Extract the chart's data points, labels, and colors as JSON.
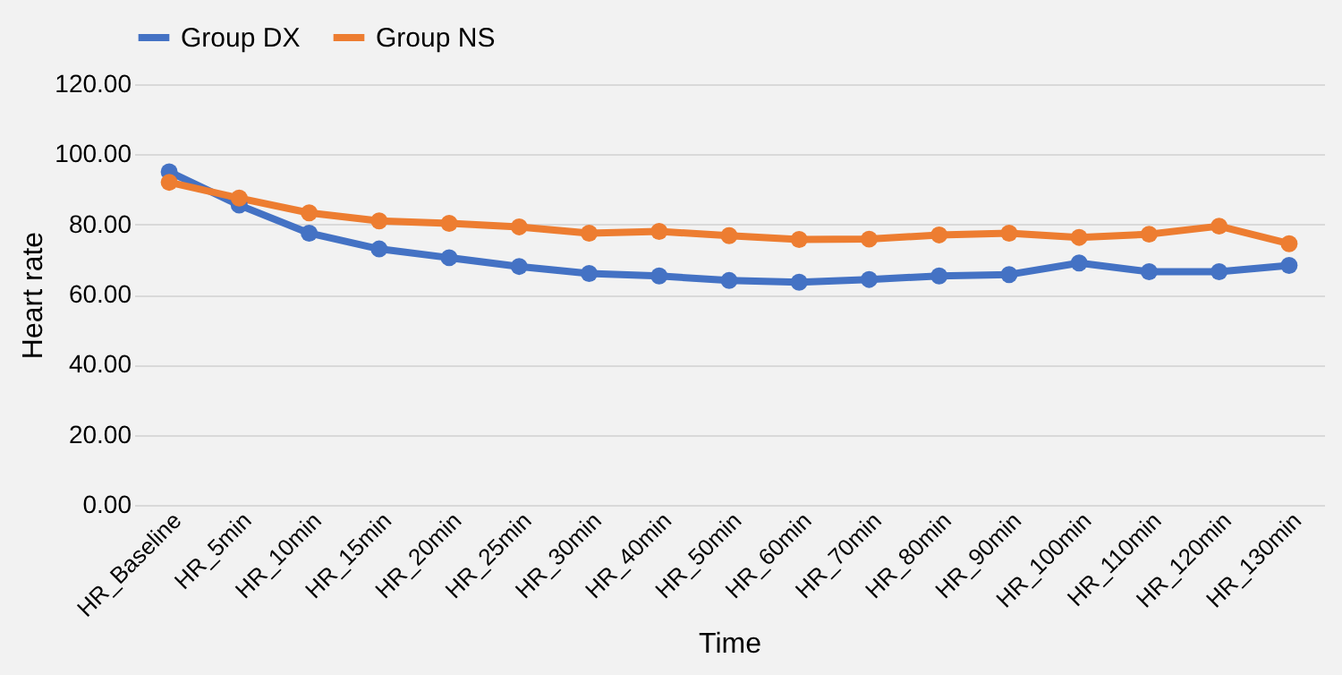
{
  "chart_data": {
    "type": "line",
    "xlabel": "Time",
    "ylabel": "Heart rate",
    "categories": [
      "HR_Baseline",
      "HR_5min",
      "HR_10min",
      "HR_15min",
      "HR_20min",
      "HR_25min",
      "HR_30min",
      "HR_40min",
      "HR_50min",
      "HR_60min",
      "HR_70min",
      "HR_80min",
      "HR_90min",
      "HR_100min",
      "HR_110min",
      "HR_120min",
      "HR_130min"
    ],
    "series": [
      {
        "name": "Group DX",
        "color": "#4472c4",
        "values": [
          95,
          85.5,
          77.5,
          73,
          70.5,
          68,
          66,
          65.3,
          64,
          63.5,
          64.3,
          65.3,
          65.7,
          69,
          66.5,
          66.5,
          68.3
        ]
      },
      {
        "name": "Group NS",
        "color": "#ed7d31",
        "values": [
          92,
          87.5,
          83.3,
          81,
          80.3,
          79.3,
          77.5,
          78,
          76.8,
          75.7,
          75.8,
          77,
          77.5,
          76.3,
          77.2,
          79.5,
          74.5
        ]
      }
    ],
    "ylim": [
      0,
      120
    ],
    "yticks": [
      {
        "value": 0,
        "label": "0.00"
      },
      {
        "value": 20,
        "label": "20.00"
      },
      {
        "value": 40,
        "label": "40.00"
      },
      {
        "value": 60,
        "label": "60.00"
      },
      {
        "value": 80,
        "label": "80.00"
      },
      {
        "value": 100,
        "label": "100.00"
      },
      {
        "value": 120,
        "label": "120.00"
      }
    ],
    "grid": "y",
    "legend": "top",
    "marker": "circle",
    "line_style": "solid"
  }
}
